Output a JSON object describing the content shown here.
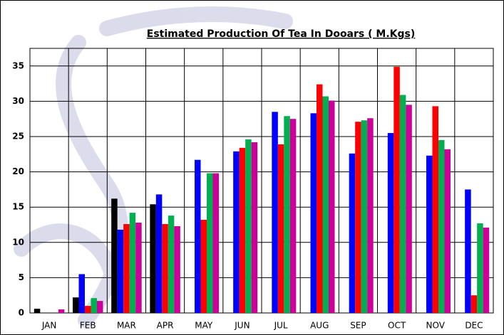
{
  "chart_data": {
    "type": "bar",
    "title": "Estimated Production Of Tea In Dooars ( M.Kgs)",
    "categories": [
      "JAN",
      "FEB",
      "MAR",
      "APR",
      "MAY",
      "JUN",
      "JUL",
      "AUG",
      "SEP",
      "OCT",
      "NOV",
      "DEC"
    ],
    "series": [
      {
        "color": "#000000",
        "values": [
          0.6,
          2.2,
          16.2,
          15.4,
          null,
          null,
          null,
          null,
          null,
          null,
          null,
          null
        ]
      },
      {
        "color": "#0000ff",
        "values": [
          0,
          5.5,
          11.8,
          16.8,
          21.7,
          22.9,
          28.5,
          28.3,
          22.6,
          25.5,
          22.3,
          17.5
        ]
      },
      {
        "color": "#ff0000",
        "values": [
          0,
          1.0,
          12.6,
          12.6,
          13.2,
          23.4,
          23.9,
          32.4,
          27.1,
          34.9,
          29.3,
          2.5
        ]
      },
      {
        "color": "#00b050",
        "values": [
          0,
          2.1,
          14.2,
          13.8,
          19.8,
          24.6,
          27.9,
          30.7,
          27.3,
          30.9,
          24.5,
          12.7
        ]
      },
      {
        "color": "#cc0099",
        "values": [
          0.5,
          1.7,
          12.8,
          12.3,
          19.8,
          24.2,
          27.5,
          30.1,
          27.6,
          29.5,
          23.2,
          12.1
        ]
      }
    ],
    "ylim": [
      0,
      37.5
    ],
    "yticks": [
      0,
      5,
      10,
      15,
      20,
      25,
      30,
      35
    ],
    "grid": true
  }
}
